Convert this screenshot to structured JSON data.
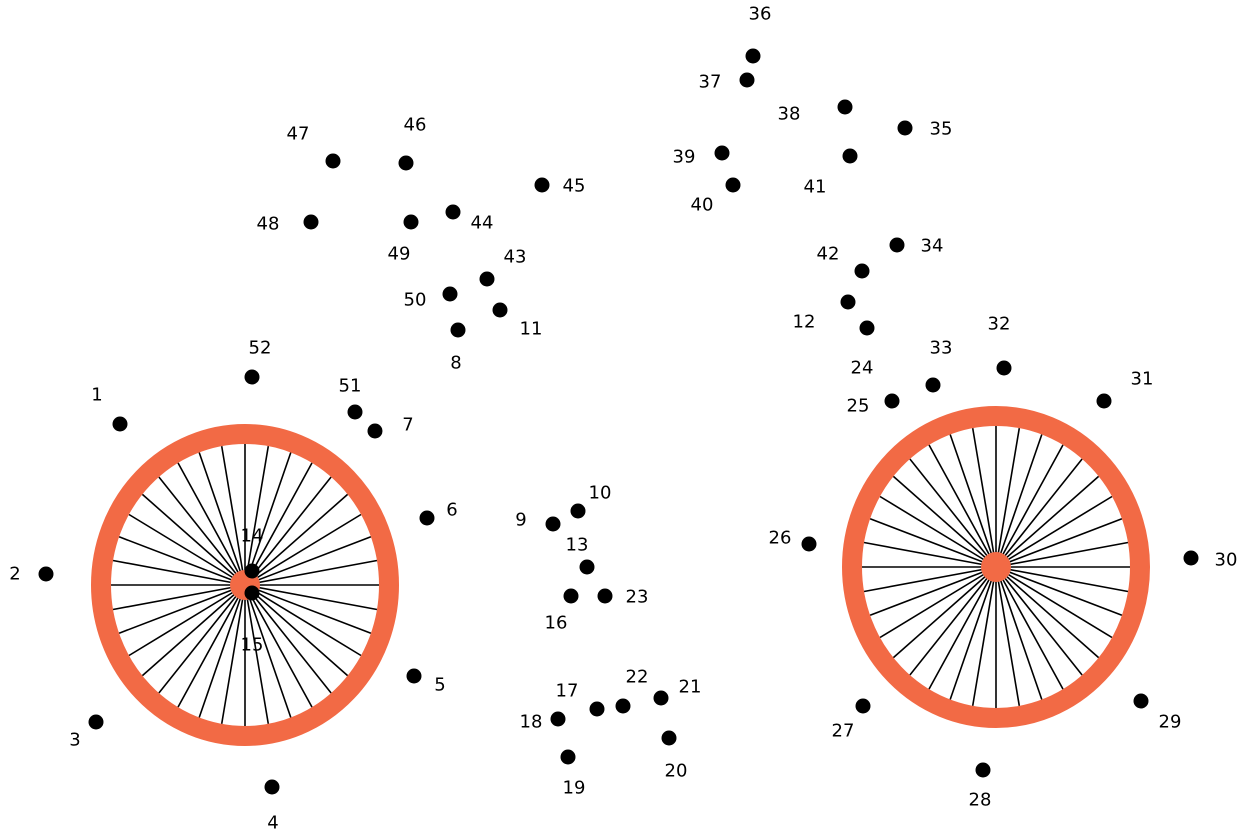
{
  "colors": {
    "rim": "#F26A45",
    "dot": "#000000",
    "spoke": "#000000",
    "background": "#FFFFFF"
  },
  "dots": [
    {
      "label": "1"
    },
    {
      "label": "2"
    },
    {
      "label": "3"
    },
    {
      "label": "4"
    },
    {
      "label": "5"
    },
    {
      "label": "6"
    },
    {
      "label": "7"
    },
    {
      "label": "8"
    },
    {
      "label": "9"
    },
    {
      "label": "10"
    },
    {
      "label": "11"
    },
    {
      "label": "12"
    },
    {
      "label": "13"
    },
    {
      "label": "14"
    },
    {
      "label": "15"
    },
    {
      "label": "16"
    },
    {
      "label": "17"
    },
    {
      "label": "18"
    },
    {
      "label": "19"
    },
    {
      "label": "20"
    },
    {
      "label": "21"
    },
    {
      "label": "22"
    },
    {
      "label": "23"
    },
    {
      "label": "24"
    },
    {
      "label": "25"
    },
    {
      "label": "26"
    },
    {
      "label": "27"
    },
    {
      "label": "28"
    },
    {
      "label": "29"
    },
    {
      "label": "30"
    },
    {
      "label": "31"
    },
    {
      "label": "32"
    },
    {
      "label": "33"
    },
    {
      "label": "34"
    },
    {
      "label": "35"
    },
    {
      "label": "36"
    },
    {
      "label": "37"
    },
    {
      "label": "38"
    },
    {
      "label": "39"
    },
    {
      "label": "40"
    },
    {
      "label": "41"
    },
    {
      "label": "42"
    },
    {
      "label": "43"
    },
    {
      "label": "44"
    },
    {
      "label": "45"
    },
    {
      "label": "46"
    },
    {
      "label": "47"
    },
    {
      "label": "48"
    },
    {
      "label": "49"
    },
    {
      "label": "50"
    },
    {
      "label": "51"
    },
    {
      "label": "52"
    }
  ]
}
